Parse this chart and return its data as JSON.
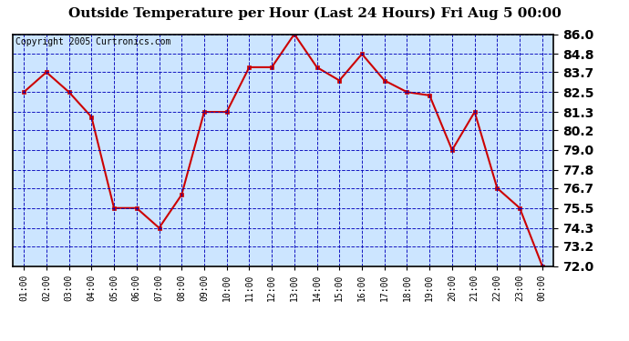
{
  "title": "Outside Temperature per Hour (Last 24 Hours) Fri Aug 5 00:00",
  "copyright": "Copyright 2005 Curtronics.com",
  "hours": [
    "01:00",
    "02:00",
    "03:00",
    "04:00",
    "05:00",
    "06:00",
    "07:00",
    "08:00",
    "09:00",
    "10:00",
    "11:00",
    "12:00",
    "13:00",
    "14:00",
    "15:00",
    "16:00",
    "17:00",
    "18:00",
    "19:00",
    "20:00",
    "21:00",
    "22:00",
    "23:00",
    "00:00"
  ],
  "values": [
    82.5,
    83.7,
    82.5,
    81.0,
    75.5,
    75.5,
    74.3,
    76.3,
    81.3,
    81.3,
    84.0,
    84.0,
    86.0,
    84.0,
    83.2,
    84.8,
    83.2,
    82.5,
    82.3,
    79.0,
    81.3,
    76.7,
    75.5,
    72.0
  ],
  "ylim": [
    72.0,
    86.0
  ],
  "yticks": [
    72.0,
    73.2,
    74.3,
    75.5,
    76.7,
    77.8,
    79.0,
    80.2,
    81.3,
    82.5,
    83.7,
    84.8,
    86.0
  ],
  "line_color": "#cc0000",
  "marker_color": "#cc0000",
  "bg_color": "#cce5ff",
  "fig_bg_color": "#ffffff",
  "title_fontsize": 11,
  "copyright_fontsize": 7,
  "grid_color": "#0000bb",
  "ytick_fontsize": 10,
  "xtick_fontsize": 7
}
